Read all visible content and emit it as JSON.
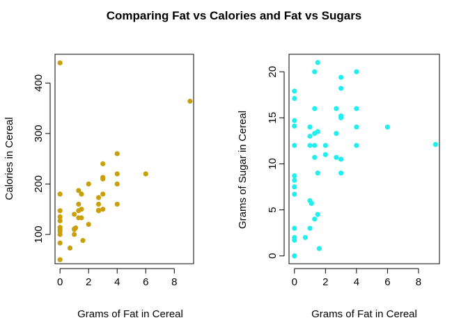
{
  "figure": {
    "title": "Comparing Fat vs Calories and Fat vs Sugars"
  },
  "chart_data": [
    {
      "type": "scatter",
      "xlabel": "Grams of Fat in Cereal",
      "ylabel": "Calories in Cereal",
      "xlim": [
        -0.35,
        9.35
      ],
      "ylim": [
        42,
        457
      ],
      "xticks": [
        0,
        2,
        4,
        6,
        8
      ],
      "yticks": [
        100,
        200,
        300,
        400
      ],
      "grid": false,
      "legend": "none",
      "color": "#C9A00B",
      "points": [
        [
          0,
          440
        ],
        [
          0,
          180
        ],
        [
          0,
          147
        ],
        [
          0,
          135
        ],
        [
          0,
          127
        ],
        [
          0,
          114
        ],
        [
          0,
          110
        ],
        [
          0,
          106
        ],
        [
          0,
          100
        ],
        [
          0,
          83
        ],
        [
          0,
          50
        ],
        [
          0.7,
          73
        ],
        [
          1,
          140
        ],
        [
          1,
          111
        ],
        [
          1,
          110
        ],
        [
          1,
          100
        ],
        [
          1.1,
          113
        ],
        [
          1.3,
          187
        ],
        [
          1.3,
          160
        ],
        [
          1.3,
          147
        ],
        [
          1.3,
          133
        ],
        [
          1.5,
          180
        ],
        [
          1.5,
          150
        ],
        [
          1.5,
          133
        ],
        [
          1.6,
          88
        ],
        [
          2,
          200
        ],
        [
          2,
          120
        ],
        [
          2.7,
          173
        ],
        [
          2.7,
          160
        ],
        [
          2.7,
          148
        ],
        [
          2.7,
          147
        ],
        [
          3,
          240
        ],
        [
          3,
          213
        ],
        [
          3,
          210
        ],
        [
          3,
          180
        ],
        [
          3,
          150
        ],
        [
          4,
          260
        ],
        [
          4,
          220
        ],
        [
          4,
          200
        ],
        [
          4,
          160
        ],
        [
          6,
          220
        ],
        [
          9.1,
          364
        ]
      ]
    },
    {
      "type": "scatter",
      "xlabel": "Grams of Fat in Cereal",
      "ylabel": "Grams of Sugar in Cereal",
      "xlim": [
        -0.35,
        9.35
      ],
      "ylim": [
        -0.85,
        21.9
      ],
      "xticks": [
        0,
        2,
        4,
        6,
        8
      ],
      "yticks": [
        0,
        5,
        10,
        15,
        20
      ],
      "grid": false,
      "legend": "none",
      "color": "#22EEEE",
      "points": [
        [
          0,
          17.9
        ],
        [
          0,
          17.1
        ],
        [
          0,
          14.7
        ],
        [
          0,
          14.1
        ],
        [
          0,
          12
        ],
        [
          0,
          8.7
        ],
        [
          0,
          8.2
        ],
        [
          0,
          7.5
        ],
        [
          0,
          6.7
        ],
        [
          0,
          3
        ],
        [
          0,
          2
        ],
        [
          0,
          1.7
        ],
        [
          0,
          0
        ],
        [
          0,
          0
        ],
        [
          0.7,
          2
        ],
        [
          1,
          14
        ],
        [
          1,
          13
        ],
        [
          1,
          12
        ],
        [
          1,
          6
        ],
        [
          1,
          3
        ],
        [
          1.1,
          5.7
        ],
        [
          1.3,
          20
        ],
        [
          1.3,
          16
        ],
        [
          1.3,
          13.3
        ],
        [
          1.3,
          12
        ],
        [
          1.3,
          10.7
        ],
        [
          1.3,
          4
        ],
        [
          1.5,
          21
        ],
        [
          1.5,
          13.5
        ],
        [
          1.5,
          9
        ],
        [
          1.5,
          4.5
        ],
        [
          1.6,
          0.8
        ],
        [
          2,
          12
        ],
        [
          2,
          11
        ],
        [
          2.7,
          16
        ],
        [
          2.7,
          13.3
        ],
        [
          2.7,
          10.7
        ],
        [
          3,
          19.4
        ],
        [
          3,
          18.2
        ],
        [
          3,
          15.2
        ],
        [
          3,
          15
        ],
        [
          3,
          10.5
        ],
        [
          3,
          9
        ],
        [
          4,
          20
        ],
        [
          4,
          16
        ],
        [
          4,
          14
        ],
        [
          4,
          12
        ],
        [
          6,
          14
        ],
        [
          9.1,
          12.1
        ]
      ]
    }
  ]
}
